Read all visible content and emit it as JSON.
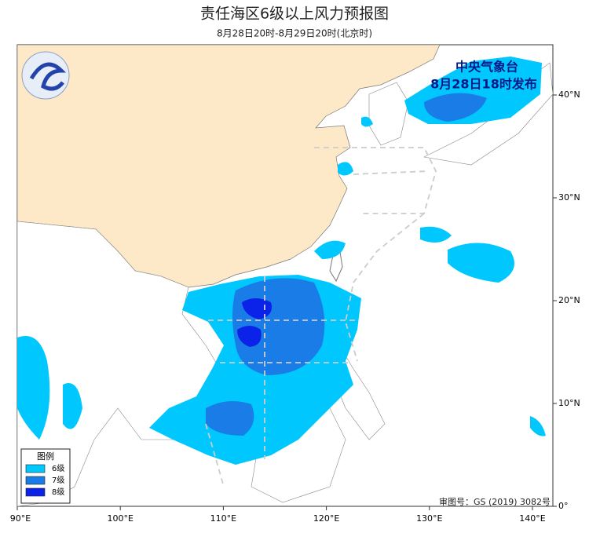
{
  "header": {
    "title": "责任海区6级以上风力预报图",
    "subtitle": "8月28日20时-8月29日20时(北京时)"
  },
  "stamp": {
    "org": "中央气象台",
    "issued": "8月28日18时发布"
  },
  "legend": {
    "title": "图例",
    "items": [
      {
        "label": "6级",
        "color": "#00c8ff"
      },
      {
        "label": "7级",
        "color": "#1a7ce6"
      },
      {
        "label": "8级",
        "color": "#0b22e8"
      }
    ]
  },
  "axes": {
    "lon_ticks": [
      "90°E",
      "100°E",
      "110°E",
      "120°E",
      "130°E",
      "140°E"
    ],
    "lat_ticks": [
      "0°",
      "10°N",
      "20°N",
      "30°N",
      "40°N"
    ]
  },
  "approval": "审图号：GS (2019) 3082号"
}
